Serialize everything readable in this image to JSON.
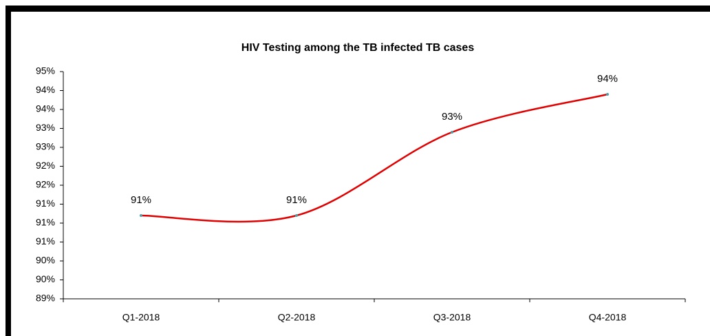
{
  "chart_data": {
    "type": "line",
    "title": "HIV Testing among the TB infected TB cases",
    "categories": [
      "Q1-2018",
      "Q2-2018",
      "Q3-2018",
      "Q4-2018"
    ],
    "series": [
      {
        "color": "#e00000",
        "values": [
          91.2,
          91.2,
          93.4,
          94.4
        ],
        "value_labels": [
          "91%",
          "91%",
          "93%",
          "94%"
        ]
      }
    ],
    "ylim": [
      89,
      95
    ],
    "yticks": [
      {
        "value": 89,
        "label": "89%"
      },
      {
        "value": 89.5,
        "label": "90%"
      },
      {
        "value": 90,
        "label": "90%"
      },
      {
        "value": 90.5,
        "label": "91%"
      },
      {
        "value": 91,
        "label": "91%"
      },
      {
        "value": 91.5,
        "label": "91%"
      },
      {
        "value": 92,
        "label": "92%"
      },
      {
        "value": 92.5,
        "label": "92%"
      },
      {
        "value": 93,
        "label": "93%"
      },
      {
        "value": 93.5,
        "label": "93%"
      },
      {
        "value": 94,
        "label": "94%"
      },
      {
        "value": 94.5,
        "label": "94%"
      },
      {
        "value": 95,
        "label": "95%"
      }
    ],
    "grid": false
  }
}
